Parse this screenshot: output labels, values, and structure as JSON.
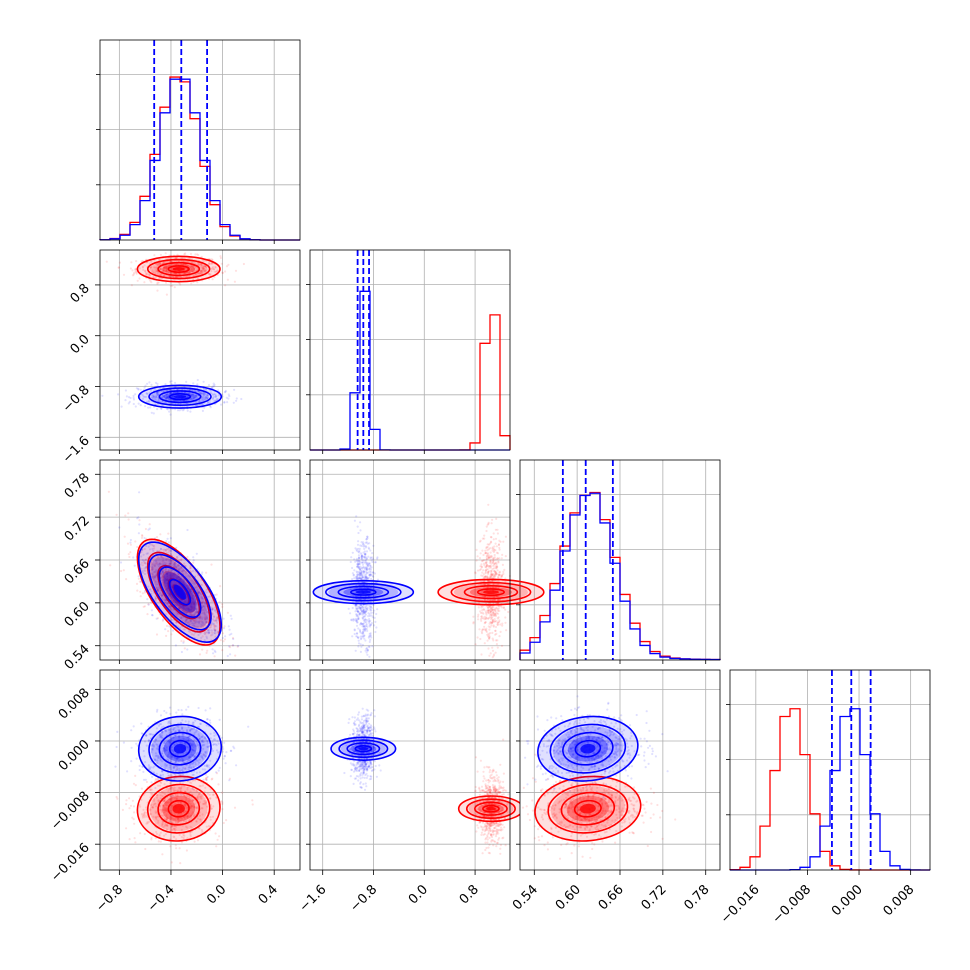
{
  "colors": {
    "red": "#ff0000",
    "blue": "#0000ff",
    "grid": "#b0b0b0"
  },
  "chart_data": {
    "type": "corner",
    "series": [
      {
        "name": "",
        "color": "#ff0000"
      },
      {
        "name": "",
        "color": "#0000ff"
      }
    ],
    "params": [
      {
        "index": 0,
        "range": [
          -0.95,
          0.6
        ],
        "ticks": [
          -0.8,
          -0.4,
          0.0,
          0.4
        ],
        "tick_labels": [
          "−0.8",
          "−0.4",
          "0.0",
          "0.4"
        ],
        "red_mean": -0.34,
        "red_sd": 0.16,
        "blue_mean": -0.33,
        "blue_sd": 0.16,
        "blue_quantiles": [
          -0.53,
          -0.32,
          -0.12
        ]
      },
      {
        "index": 1,
        "range": [
          -1.8,
          1.35
        ],
        "ticks": [
          -1.6,
          -0.8,
          0.0,
          0.8
        ],
        "tick_labels": [
          "−1.6",
          "−0.8",
          "0.0",
          "0.8"
        ],
        "red_mean": 1.05,
        "red_sd": 0.1,
        "blue_mean": -0.96,
        "blue_sd": 0.09,
        "blue_quantiles": [
          -1.05,
          -0.96,
          -0.87
        ]
      },
      {
        "index": 2,
        "range": [
          0.52,
          0.8
        ],
        "ticks": [
          0.54,
          0.6,
          0.66,
          0.72,
          0.78
        ],
        "tick_labels": [
          "0.54",
          "0.60",
          "0.66",
          "0.72",
          "0.78"
        ],
        "red_mean": 0.615,
        "red_sd": 0.037,
        "blue_mean": 0.615,
        "blue_sd": 0.035,
        "blue_quantiles": [
          0.58,
          0.612,
          0.65
        ]
      },
      {
        "index": 3,
        "range": [
          -0.02,
          0.011
        ],
        "ticks": [
          -0.016,
          -0.008,
          0.0,
          0.008
        ],
        "tick_labels": [
          "−0.016",
          "−0.008",
          "0.000",
          "0.008"
        ],
        "red_mean": -0.0105,
        "red_sd": 0.0025,
        "blue_mean": -0.0012,
        "blue_sd": 0.0025,
        "blue_quantiles": [
          -0.0042,
          -0.0012,
          0.0018
        ]
      }
    ],
    "correlations": [
      {
        "pair": [
          0,
          1
        ],
        "red": 0.0,
        "blue": 0.0
      },
      {
        "pair": [
          0,
          2
        ],
        "red": -0.65,
        "blue": -0.65
      },
      {
        "pair": [
          0,
          3
        ],
        "red": 0.05,
        "blue": 0.05
      },
      {
        "pair": [
          1,
          2
        ],
        "red": 0.0,
        "blue": 0.0
      },
      {
        "pair": [
          1,
          3
        ],
        "red": 0.0,
        "blue": 0.0
      },
      {
        "pair": [
          2,
          3
        ],
        "red": 0.1,
        "blue": 0.1
      }
    ],
    "grid": true,
    "quantile_lines": "dashed blue"
  }
}
